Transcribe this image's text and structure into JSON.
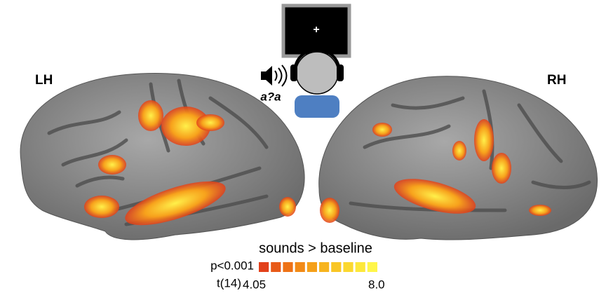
{
  "labels": {
    "left": "LH",
    "right": "RH"
  },
  "stimulus": {
    "fixation": "+",
    "sound": "a?a"
  },
  "colorbar": {
    "title": "sounds > baseline",
    "threshold": "p<0.001",
    "stat": "t(14)",
    "min_label": "4.05",
    "max_label": "8.0",
    "colors": [
      "#e2401a",
      "#e85a18",
      "#ee7216",
      "#f28a16",
      "#f5a019",
      "#f7b41e",
      "#f9c625",
      "#fbd82e",
      "#fde83a",
      "#fff64a"
    ]
  }
}
